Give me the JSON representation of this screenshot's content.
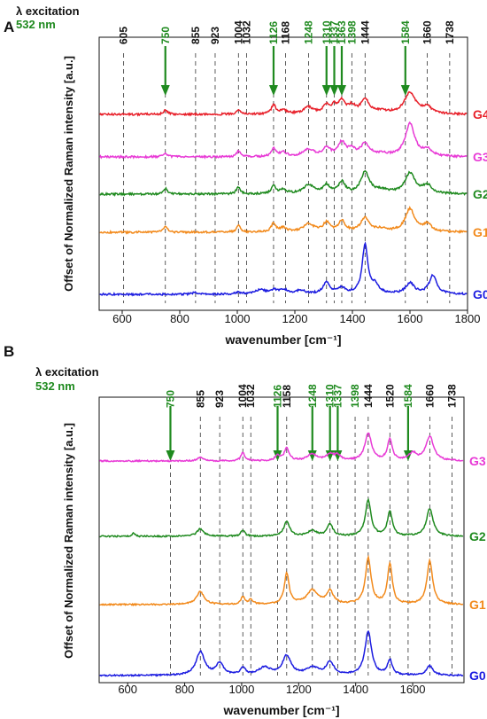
{
  "chart_data": [
    {
      "panel": "A",
      "type": "line",
      "excitation_line1": "λ excitation",
      "excitation_line2": "532 nm",
      "xlabel": "wavenumber [cm⁻¹]",
      "ylabel": "Offset of Normalized Raman intensity [a.u.]",
      "xlim": [
        520,
        1800
      ],
      "xticks": [
        600,
        800,
        1000,
        1200,
        1400,
        1600,
        1800
      ],
      "grid": false,
      "band_positions": [
        605,
        750,
        855,
        923,
        1004,
        1032,
        1126,
        1168,
        1248,
        1310,
        1337,
        1363,
        1398,
        1444,
        1584,
        1660,
        1738
      ],
      "highlighted_bands": [
        750,
        1126,
        1248,
        1310,
        1337,
        1363,
        1398,
        1584
      ],
      "arrows_at": [
        750,
        1126,
        1310,
        1337,
        1363,
        1584
      ],
      "series": [
        {
          "name": "G4",
          "color": "#e8202a",
          "peaks": [
            [
              750,
              0.1,
              8
            ],
            [
              1004,
              0.12,
              8
            ],
            [
              1126,
              0.22,
              9
            ],
            [
              1160,
              0.1,
              14
            ],
            [
              1248,
              0.16,
              22
            ],
            [
              1310,
              0.2,
              14
            ],
            [
              1337,
              0.16,
              10
            ],
            [
              1363,
              0.3,
              14
            ],
            [
              1398,
              0.18,
              14
            ],
            [
              1444,
              0.34,
              18
            ],
            [
              1500,
              0.06,
              30
            ],
            [
              1600,
              0.52,
              24
            ],
            [
              1660,
              0.16,
              18
            ]
          ]
        },
        {
          "name": "G3",
          "color": "#e83ad6",
          "peaks": [
            [
              750,
              0.1,
              8
            ],
            [
              1004,
              0.14,
              8
            ],
            [
              1126,
              0.2,
              9
            ],
            [
              1160,
              0.1,
              14
            ],
            [
              1248,
              0.18,
              22
            ],
            [
              1310,
              0.22,
              14
            ],
            [
              1363,
              0.34,
              16
            ],
            [
              1398,
              0.16,
              14
            ],
            [
              1444,
              0.3,
              18
            ],
            [
              1500,
              0.06,
              30
            ],
            [
              1600,
              0.8,
              20
            ],
            [
              1660,
              0.16,
              18
            ]
          ]
        },
        {
          "name": "G2",
          "color": "#1f8a1f",
          "peaks": [
            [
              750,
              0.14,
              8
            ],
            [
              1004,
              0.18,
              8
            ],
            [
              1126,
              0.2,
              9
            ],
            [
              1160,
              0.1,
              14
            ],
            [
              1248,
              0.22,
              22
            ],
            [
              1310,
              0.2,
              14
            ],
            [
              1363,
              0.28,
              14
            ],
            [
              1444,
              0.52,
              18
            ],
            [
              1500,
              0.08,
              30
            ],
            [
              1600,
              0.5,
              22
            ],
            [
              1660,
              0.2,
              18
            ]
          ]
        },
        {
          "name": "G1",
          "color": "#f28a1c",
          "peaks": [
            [
              750,
              0.14,
              8
            ],
            [
              1004,
              0.18,
              8
            ],
            [
              1126,
              0.22,
              9
            ],
            [
              1160,
              0.1,
              14
            ],
            [
              1248,
              0.2,
              22
            ],
            [
              1310,
              0.22,
              14
            ],
            [
              1363,
              0.26,
              14
            ],
            [
              1444,
              0.34,
              18
            ],
            [
              1500,
              0.06,
              30
            ],
            [
              1600,
              0.56,
              20
            ],
            [
              1660,
              0.18,
              18
            ]
          ]
        },
        {
          "name": "G0",
          "color": "#1c1ce0",
          "peaks": [
            [
              855,
              0.04,
              14
            ],
            [
              1004,
              0.04,
              10
            ],
            [
              1080,
              0.1,
              26
            ],
            [
              1126,
              0.08,
              12
            ],
            [
              1160,
              0.1,
              18
            ],
            [
              1220,
              0.08,
              22
            ],
            [
              1310,
              0.28,
              14
            ],
            [
              1363,
              0.14,
              16
            ],
            [
              1444,
              1.2,
              12
            ],
            [
              1480,
              0.2,
              14
            ],
            [
              1600,
              0.26,
              18
            ],
            [
              1680,
              0.46,
              16
            ]
          ]
        }
      ]
    },
    {
      "panel": "B",
      "type": "line",
      "excitation_line1": "λ excitation",
      "excitation_line2": "532 nm",
      "xlabel": "wavenumber [cm⁻¹]",
      "ylabel": "Offset of Normalized Raman intensity [a.u.]",
      "xlim": [
        500,
        1780
      ],
      "xticks": [
        600,
        800,
        1000,
        1200,
        1400,
        1600,
        1800
      ],
      "grid": false,
      "band_positions": [
        750,
        855,
        923,
        1004,
        1032,
        1126,
        1158,
        1248,
        1310,
        1337,
        1398,
        1444,
        1520,
        1584,
        1660,
        1738
      ],
      "highlighted_bands": [
        750,
        1126,
        1248,
        1310,
        1337,
        1398,
        1584
      ],
      "arrows_at": [
        750,
        1126,
        1248,
        1310,
        1337,
        1584
      ],
      "series": [
        {
          "name": "G3",
          "color": "#e83ad6",
          "peaks": [
            [
              855,
              0.06,
              14
            ],
            [
              1004,
              0.16,
              8
            ],
            [
              1126,
              0.1,
              10
            ],
            [
              1158,
              0.24,
              10
            ],
            [
              1248,
              0.12,
              22
            ],
            [
              1310,
              0.12,
              14
            ],
            [
              1337,
              0.1,
              12
            ],
            [
              1444,
              0.52,
              14
            ],
            [
              1520,
              0.4,
              10
            ],
            [
              1600,
              0.14,
              16
            ],
            [
              1660,
              0.46,
              16
            ]
          ]
        },
        {
          "name": "G2",
          "color": "#1f8a1f",
          "peaks": [
            [
              620,
              0.08,
              5
            ],
            [
              855,
              0.14,
              14
            ],
            [
              1004,
              0.12,
              8
            ],
            [
              1158,
              0.28,
              12
            ],
            [
              1248,
              0.1,
              20
            ],
            [
              1310,
              0.22,
              12
            ],
            [
              1444,
              0.68,
              12
            ],
            [
              1520,
              0.46,
              10
            ],
            [
              1660,
              0.52,
              14
            ]
          ]
        },
        {
          "name": "G1",
          "color": "#f28a1c",
          "peaks": [
            [
              855,
              0.24,
              16
            ],
            [
              1004,
              0.14,
              8
            ],
            [
              1032,
              0.08,
              10
            ],
            [
              1158,
              0.58,
              10
            ],
            [
              1248,
              0.26,
              24
            ],
            [
              1310,
              0.24,
              14
            ],
            [
              1444,
              0.86,
              12
            ],
            [
              1520,
              0.76,
              10
            ],
            [
              1660,
              0.82,
              12
            ]
          ]
        },
        {
          "name": "G0",
          "color": "#1c1ce0",
          "peaks": [
            [
              855,
              0.44,
              18
            ],
            [
              923,
              0.22,
              16
            ],
            [
              1004,
              0.14,
              10
            ],
            [
              1080,
              0.14,
              26
            ],
            [
              1158,
              0.36,
              18
            ],
            [
              1248,
              0.14,
              26
            ],
            [
              1310,
              0.24,
              16
            ],
            [
              1444,
              0.82,
              14
            ],
            [
              1520,
              0.28,
              10
            ],
            [
              1660,
              0.18,
              14
            ]
          ]
        }
      ]
    }
  ],
  "colors": {
    "highlight_green": "#1f8a1f",
    "label_black": "#111111"
  }
}
